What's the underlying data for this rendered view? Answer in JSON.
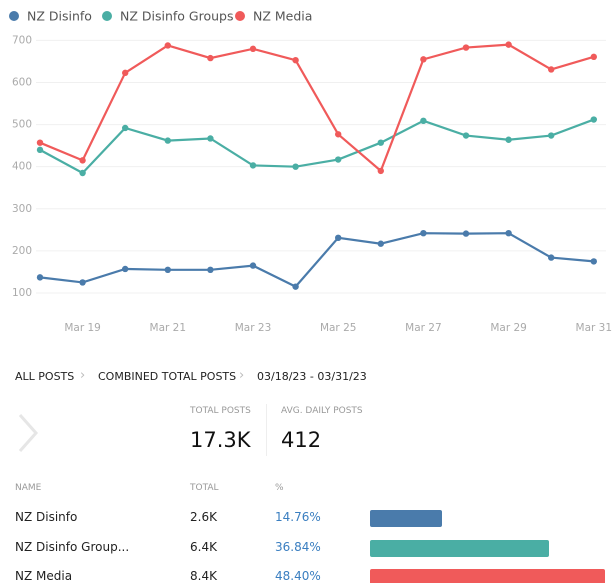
{
  "chart_data": {
    "type": "line",
    "categories": [
      null,
      "Mar 19",
      null,
      "Mar 21",
      null,
      "Mar 23",
      null,
      "Mar 25",
      null,
      "Mar 27",
      null,
      "Mar 29",
      null,
      "Mar 31"
    ],
    "series": [
      {
        "name": "NZ Disinfo",
        "color": "#4a7bab",
        "values": [
          137,
          125,
          157,
          155,
          155,
          165,
          115,
          231,
          217,
          242,
          241,
          242,
          184,
          175
        ]
      },
      {
        "name": "NZ Disinfo Groups",
        "color": "#4aaea4",
        "values": [
          440,
          385,
          492,
          462,
          467,
          403,
          400,
          417,
          457,
          509,
          474,
          464,
          474,
          512
        ]
      },
      {
        "name": "NZ Media",
        "color": "#f05a5a",
        "values": [
          457,
          415,
          623,
          688,
          658,
          680,
          653,
          477,
          390,
          655,
          683,
          690,
          631,
          661
        ]
      }
    ],
    "ylim": [
      50,
      720
    ],
    "yticks": [
      100,
      200,
      300,
      400,
      500,
      600,
      700
    ],
    "grid": true,
    "legend": "top-left"
  },
  "breadcrumb": [
    "ALL POSTS",
    "COMBINED TOTAL POSTS",
    "03/18/23 - 03/31/23"
  ],
  "stats": [
    {
      "label": "TOTAL POSTS",
      "value": "17.3K"
    },
    {
      "label": "AVG. DAILY POSTS",
      "value": "412"
    }
  ],
  "table": {
    "header": [
      "NAME",
      "TOTAL",
      "%"
    ],
    "rows": [
      {
        "name": "NZ Disinfo",
        "total": "2.6K",
        "percent": 14.76,
        "percent_label": "14.76%",
        "color": "#4a7bab"
      },
      {
        "name": "NZ Disinfo Group...",
        "total": "6.4K",
        "percent": 36.84,
        "percent_label": "36.84%",
        "color": "#4aaea4"
      },
      {
        "name": "NZ Media",
        "total": "8.4K",
        "percent": 48.4,
        "percent_label": "48.40%",
        "color": "#f05a5a"
      }
    ]
  }
}
